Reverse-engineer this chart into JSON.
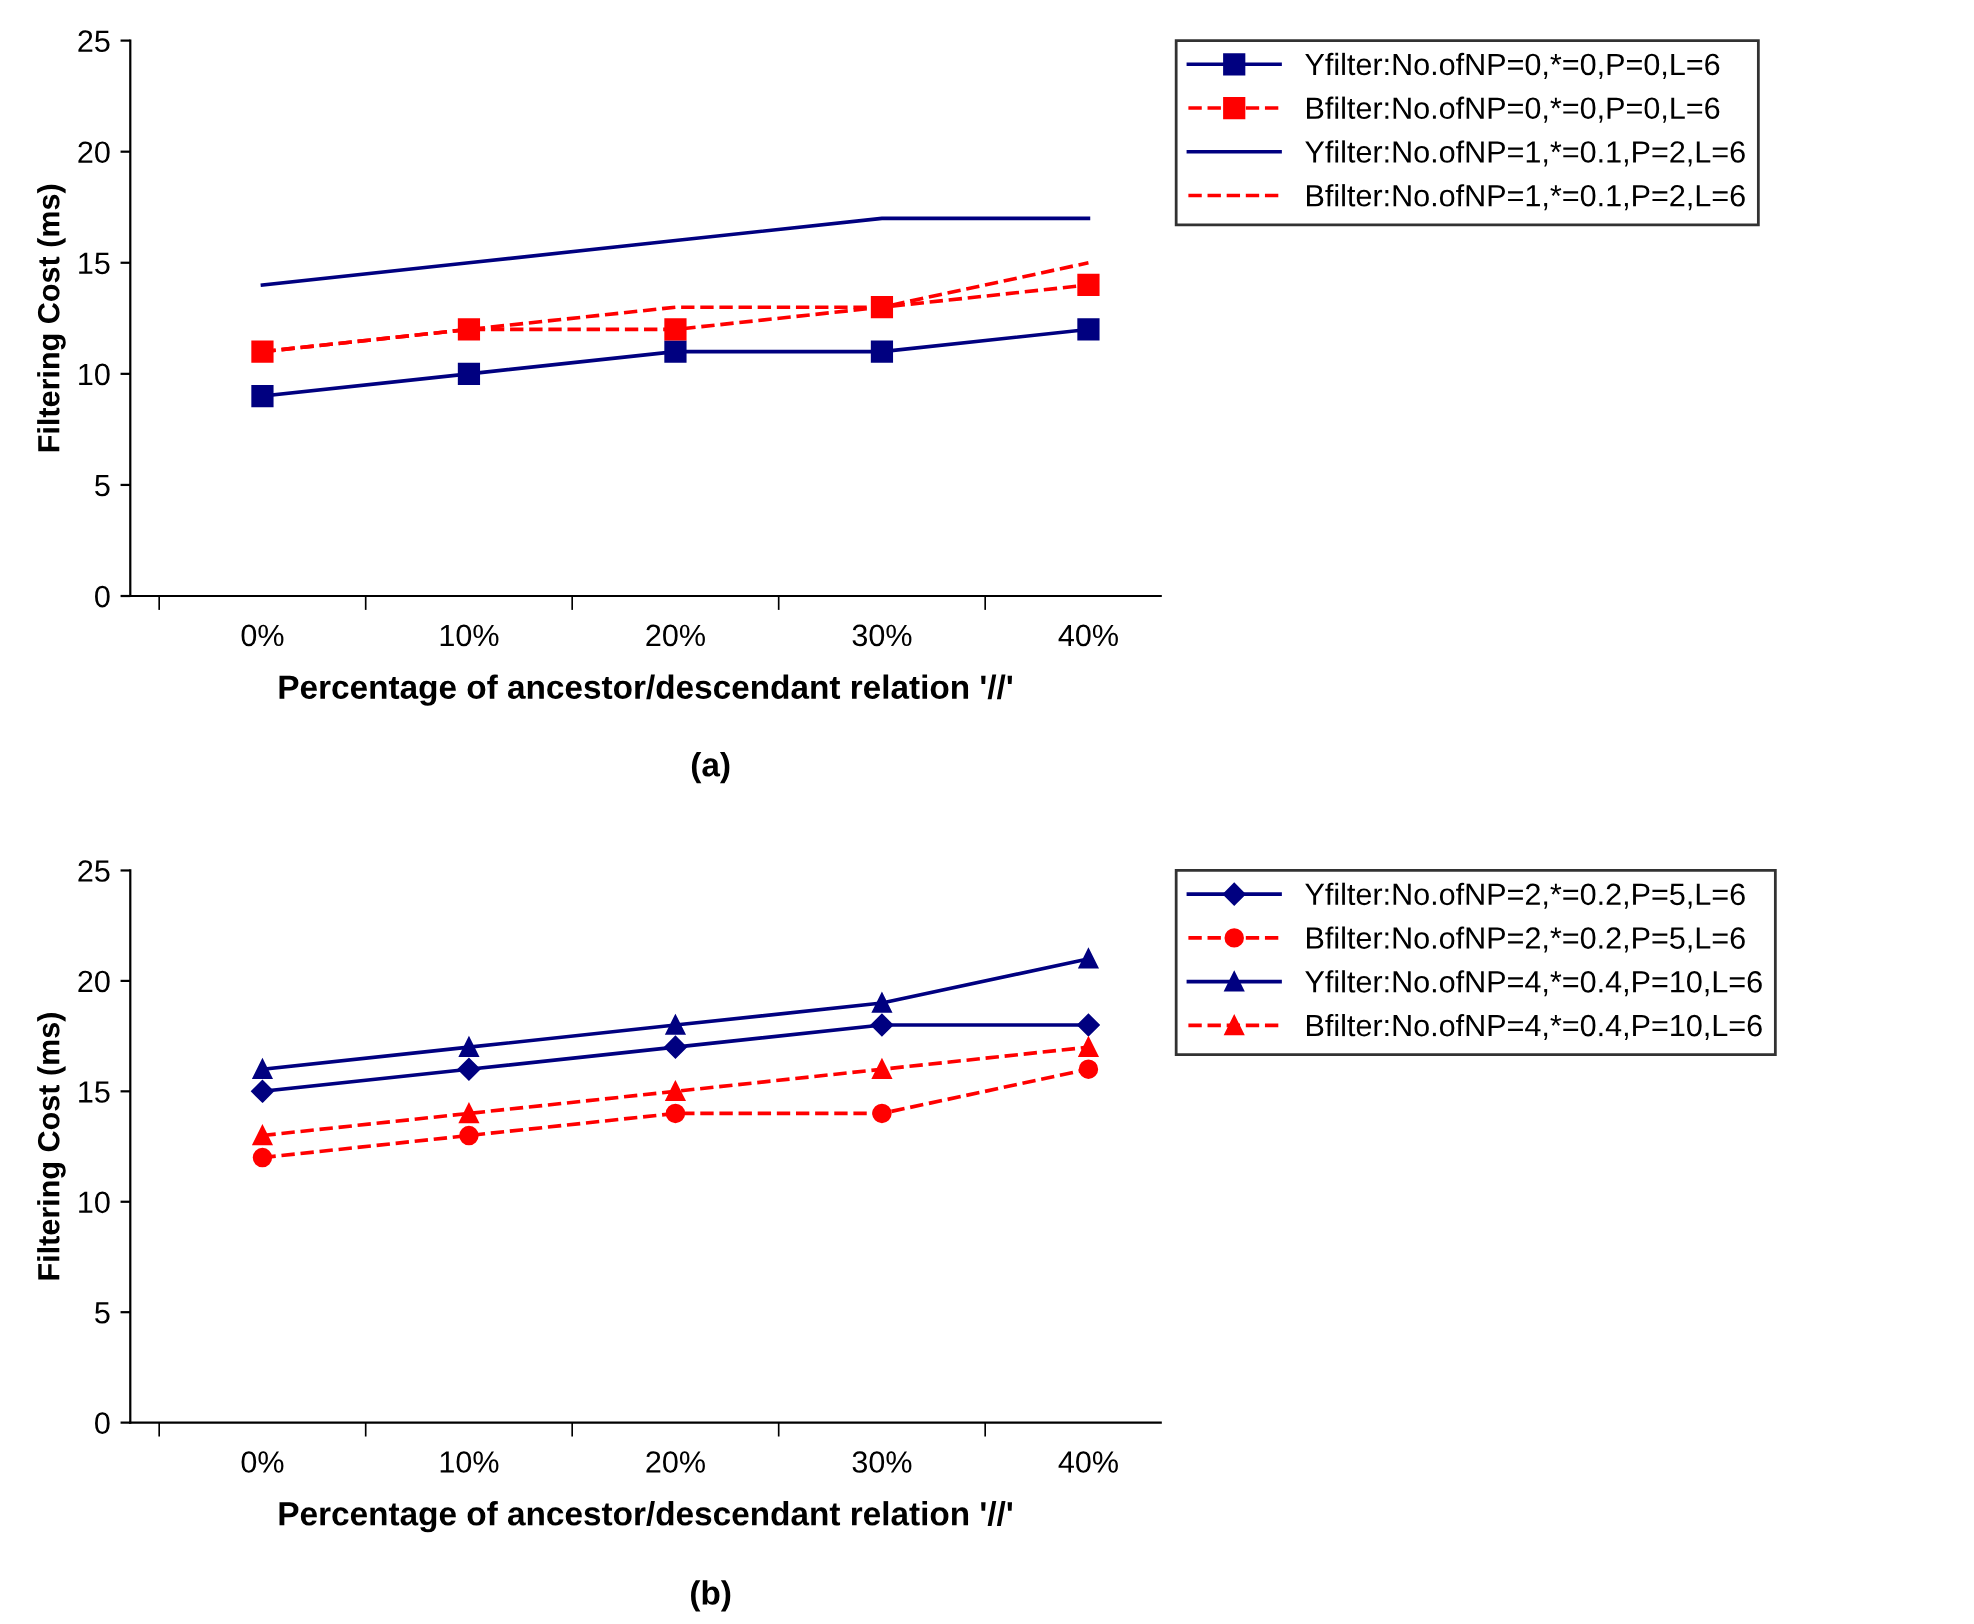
{
  "chart_data": [
    {
      "type": "line",
      "xlabel": "Percentage of ancestor/descendant relation '//'",
      "ylabel": "Filtering Cost (ms)",
      "categories": [
        "0%",
        "10%",
        "20%",
        "30%",
        "40%"
      ],
      "ylim": [
        0,
        25
      ],
      "yticks": [
        0,
        5,
        10,
        15,
        20,
        25
      ],
      "grid": false,
      "legend": "right",
      "annotations": [
        "(a)"
      ],
      "series": [
        {
          "name": "Yfilter:No.ofNP=0,*=0,P=0,L=6",
          "color": "#000080",
          "marker": "square",
          "line_style": "solid",
          "values": [
            9,
            10,
            11,
            11,
            12
          ]
        },
        {
          "name": "Bfilter:No.ofNP=0,*=0,P=0,L=6",
          "color": "#ff0000",
          "marker": "square",
          "line_style": "dashed",
          "values": [
            11,
            12,
            12,
            13,
            14
          ]
        },
        {
          "name": "Yfilter:No.ofNP=1,*=0.1,P=2,L=6",
          "color": "#000080",
          "marker": "none",
          "line_style": "solid",
          "values": [
            14,
            15,
            16,
            17,
            17
          ]
        },
        {
          "name": "Bfilter:No.ofNP=1,*=0.1,P=2,L=6",
          "color": "#ff0000",
          "marker": "none",
          "line_style": "dashed",
          "values": [
            11,
            12,
            13,
            13,
            15
          ]
        }
      ]
    },
    {
      "type": "line",
      "xlabel": "Percentage of ancestor/descendant relation '//'",
      "ylabel": "Filtering Cost (ms)",
      "categories": [
        "0%",
        "10%",
        "20%",
        "30%",
        "40%"
      ],
      "ylim": [
        0,
        25
      ],
      "yticks": [
        0,
        5,
        10,
        15,
        20,
        25
      ],
      "grid": false,
      "legend": "right",
      "annotations": [
        "(b)"
      ],
      "series": [
        {
          "name": "Yfilter:No.ofNP=2,*=0.2,P=5,L=6",
          "color": "#000080",
          "marker": "diamond",
          "line_style": "solid",
          "values": [
            15,
            16,
            17,
            18,
            18
          ]
        },
        {
          "name": "Bfilter:No.ofNP=2,*=0.2,P=5,L=6",
          "color": "#ff0000",
          "marker": "circle",
          "line_style": "dashed",
          "values": [
            12,
            13,
            14,
            14,
            16
          ]
        },
        {
          "name": "Yfilter:No.ofNP=4,*=0.4,P=10,L=6",
          "color": "#000080",
          "marker": "triangle",
          "line_style": "solid",
          "values": [
            16,
            17,
            18,
            19,
            21
          ]
        },
        {
          "name": "Bfilter:No.ofNP=4,*=0.4,P=10,L=6",
          "color": "#ff0000",
          "marker": "triangle",
          "line_style": "dashed",
          "values": [
            13,
            14,
            15,
            16,
            17
          ]
        }
      ]
    }
  ]
}
